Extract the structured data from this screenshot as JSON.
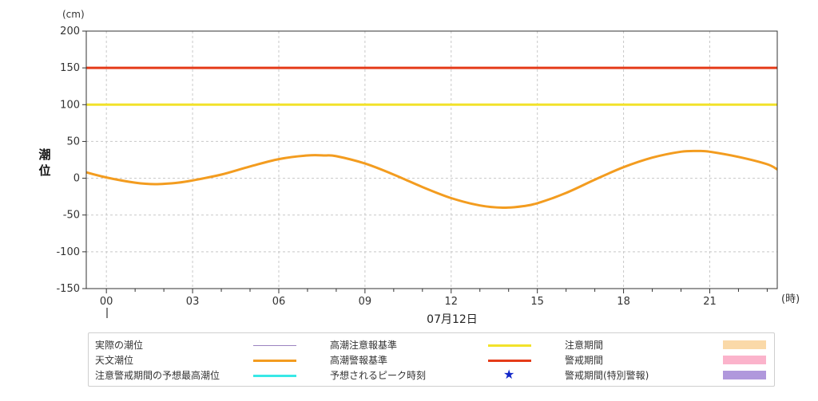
{
  "chart_data": {
    "type": "line",
    "y_unit": "(cm)",
    "x_unit": "(時)",
    "ylabel": "潮位",
    "date_label": "07月12日",
    "ylim": [
      -150,
      200
    ],
    "yticks": [
      200,
      150,
      100,
      50,
      0,
      -50,
      -100,
      -150
    ],
    "xlim": [
      -0.7,
      23.35
    ],
    "xticks": [
      {
        "h": 0,
        "label": "00"
      },
      {
        "h": 3,
        "label": "03"
      },
      {
        "h": 6,
        "label": "06"
      },
      {
        "h": 9,
        "label": "09"
      },
      {
        "h": 12,
        "label": "12"
      },
      {
        "h": 15,
        "label": "15"
      },
      {
        "h": 18,
        "label": "18"
      },
      {
        "h": 21,
        "label": "21"
      }
    ],
    "grid": true,
    "series": [
      {
        "name": "天文潮位",
        "color": "#f39c1f",
        "x": [
          -0.7,
          0,
          1,
          1.7,
          2.5,
          3,
          4,
          5,
          6,
          7,
          7.6,
          8,
          9,
          10,
          11,
          12,
          13,
          13.8,
          14.5,
          15,
          16,
          17,
          18,
          19,
          20,
          20.6,
          21,
          22,
          23,
          23.35
        ],
        "y": [
          8,
          1,
          -6,
          -8,
          -6,
          -3,
          5,
          16,
          26,
          31,
          31,
          30,
          20,
          5,
          -12,
          -27,
          -37,
          -40,
          -38,
          -34,
          -20,
          -2,
          15,
          28,
          36,
          37,
          36,
          29,
          19,
          12
        ]
      },
      {
        "name": "高潮注意報基準",
        "color": "#f2e22a",
        "constant": 100
      },
      {
        "name": "高潮警報基準",
        "color": "#e53b19",
        "constant": 150
      }
    ]
  },
  "legend": [
    {
      "label": "実際の潮位",
      "kind": "line",
      "color": "#9b82bf",
      "thick": 1
    },
    {
      "label": "高潮注意報基準",
      "kind": "line",
      "color": "#f2e22a",
      "thick": 3
    },
    {
      "label": "注意期間",
      "kind": "box",
      "color": "#fad9a8"
    },
    {
      "label": "天文潮位",
      "kind": "line",
      "color": "#f39c1f",
      "thick": 3
    },
    {
      "label": "高潮警報基準",
      "kind": "line",
      "color": "#e53b19",
      "thick": 3
    },
    {
      "label": "警戒期間",
      "kind": "box",
      "color": "#fbb3cb"
    },
    {
      "label": "注意警戒期間の予想最高潮位",
      "kind": "line",
      "color": "#38e8e6",
      "thick": 3
    },
    {
      "label": "予想されるピーク時刻",
      "kind": "star",
      "color": "#1227c9",
      "symbol": "★"
    },
    {
      "label": "警戒期間(特別警報)",
      "kind": "box",
      "color": "#b098dc"
    }
  ]
}
